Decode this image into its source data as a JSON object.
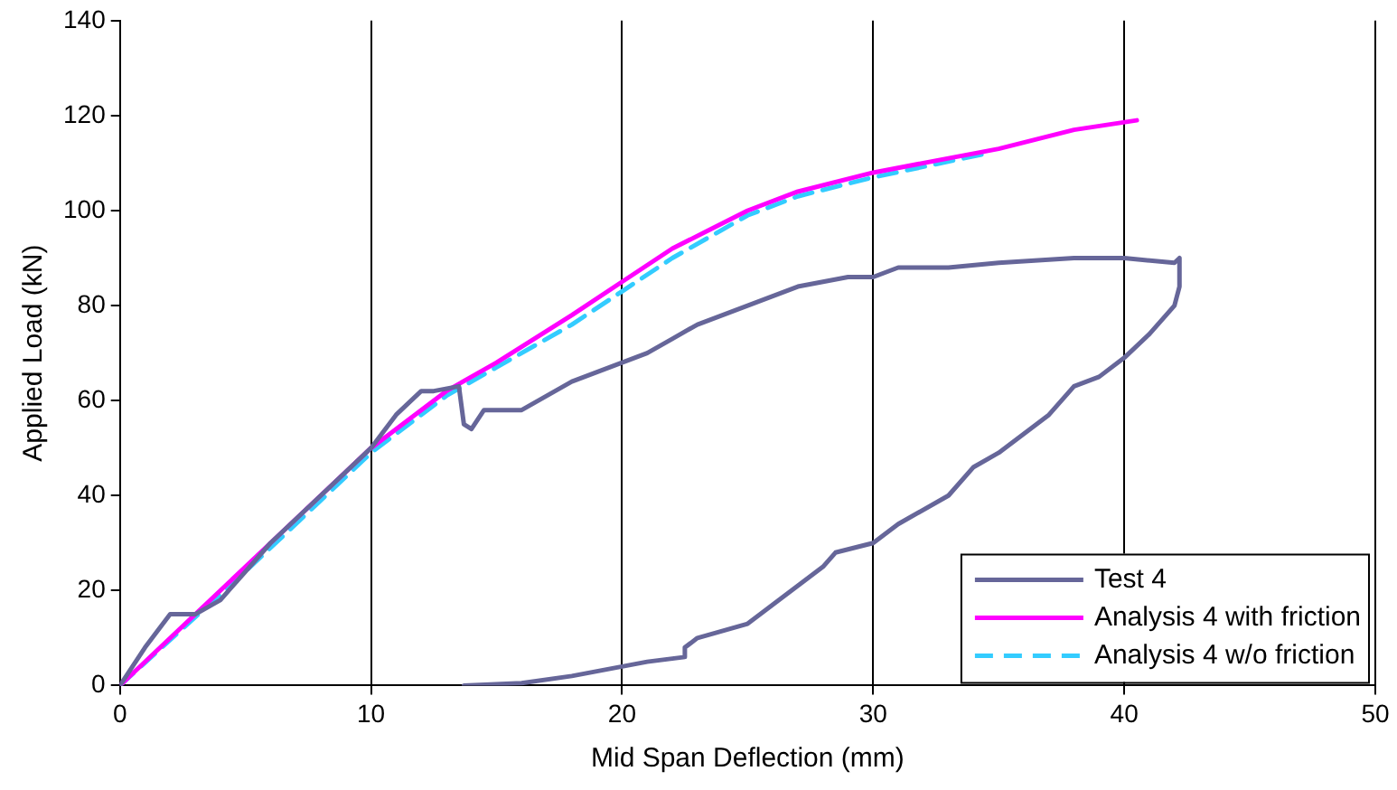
{
  "chart_data": {
    "type": "line",
    "xlabel": "Mid Span Deflection (mm)",
    "ylabel": "Applied Load (kN)",
    "xlim": [
      0,
      50
    ],
    "xticks": [
      0,
      10,
      20,
      30,
      40,
      50
    ],
    "ylim": [
      0,
      140
    ],
    "yticks": [
      0,
      20,
      40,
      60,
      80,
      100,
      120,
      140
    ],
    "grid": "x",
    "legend": "bottom right",
    "marker": "none",
    "series": [
      {
        "name": "Test 4",
        "color": "#666699",
        "line_style": "solid",
        "x": [
          0,
          1,
          2,
          3,
          4,
          5,
          6,
          8,
          10,
          11,
          12,
          12.5,
          13.5,
          13.7,
          14,
          14.5,
          16,
          17,
          18,
          20,
          21,
          22,
          23,
          25,
          27,
          29,
          30,
          31,
          33,
          35,
          38,
          40,
          42,
          42.2,
          42.2,
          42,
          41,
          40,
          39,
          38,
          37,
          35,
          34,
          33,
          31,
          30,
          28.5,
          28,
          26,
          25,
          23,
          22.5,
          22.5,
          21,
          20,
          18,
          16,
          13.7
        ],
        "values": [
          0,
          8,
          15,
          15,
          18,
          24,
          30,
          40,
          50,
          57,
          62,
          62,
          63,
          55,
          54,
          58,
          58,
          61,
          64,
          68,
          70,
          73,
          76,
          80,
          84,
          86,
          86,
          88,
          88,
          89,
          90,
          90,
          89,
          90,
          84,
          80,
          74,
          69,
          65,
          63,
          57,
          49,
          46,
          40,
          34,
          30,
          28,
          25,
          17,
          13,
          10,
          8,
          6,
          5,
          4,
          2,
          0.5,
          0
        ]
      },
      {
        "name": "Analysis 4 with friction",
        "color": "#ff00ff",
        "line_style": "solid",
        "x": [
          0,
          5,
          10,
          13,
          15,
          18,
          20,
          22,
          25,
          27,
          30,
          35,
          38,
          40.5
        ],
        "values": [
          0,
          25,
          50,
          62,
          68,
          78,
          85,
          92,
          100,
          104,
          108,
          113,
          117,
          119
        ]
      },
      {
        "name": "Analysis 4 w/o friction",
        "color": "#33ccff",
        "line_style": "dashed",
        "x": [
          0,
          5,
          10,
          13,
          15,
          18,
          20,
          22,
          25,
          27,
          30,
          34.5
        ],
        "values": [
          0,
          24,
          49,
          61,
          67,
          76,
          83,
          90,
          99,
          103,
          107,
          112
        ]
      }
    ]
  }
}
